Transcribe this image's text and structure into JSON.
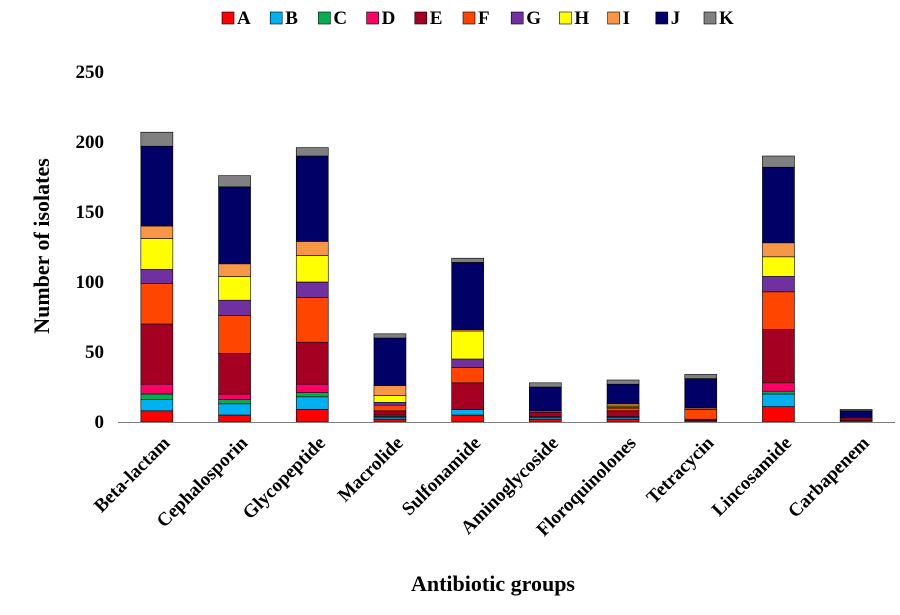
{
  "chart_data": {
    "type": "bar",
    "stacked": true,
    "title": "",
    "xlabel": "Antibiotic groups",
    "ylabel": "Number of isolates",
    "ylim": [
      0,
      250
    ],
    "yticks": [
      0,
      50,
      100,
      150,
      200,
      250
    ],
    "grid": false,
    "legend_position": "top",
    "categories": [
      "Beta-lactam",
      "Cephalosporin",
      "Glycopeptide",
      "Macrolide",
      "Sulfonamide",
      "Aminoglycoside",
      "Floroquinolones",
      "Tetracycin",
      "Lincosamide",
      "Carbapenem"
    ],
    "series": [
      {
        "name": "A",
        "color": "#ff0000",
        "values": [
          8,
          5,
          9,
          2,
          5,
          2,
          2,
          1,
          11,
          1
        ]
      },
      {
        "name": "B",
        "color": "#00b0f0",
        "values": [
          8,
          8,
          9,
          1,
          4,
          1,
          1,
          0,
          9,
          0
        ]
      },
      {
        "name": "C",
        "color": "#00b050",
        "values": [
          4,
          3,
          3,
          1,
          0,
          0,
          0,
          0,
          2,
          0
        ]
      },
      {
        "name": "D",
        "color": "#ff0066",
        "values": [
          7,
          4,
          6,
          1,
          0,
          1,
          1,
          0,
          6,
          0
        ]
      },
      {
        "name": "E",
        "color": "#a50021",
        "values": [
          43,
          29,
          30,
          3,
          19,
          3,
          4,
          1,
          38,
          2
        ]
      },
      {
        "name": "F",
        "color": "#ff4500",
        "values": [
          29,
          27,
          32,
          4,
          11,
          1,
          2,
          7,
          27,
          0
        ]
      },
      {
        "name": "G",
        "color": "#7030a0",
        "values": [
          10,
          11,
          11,
          2,
          6,
          0,
          1,
          0,
          11,
          0
        ]
      },
      {
        "name": "H",
        "color": "#ffff00",
        "values": [
          22,
          17,
          19,
          5,
          20,
          0,
          1,
          0,
          14,
          0
        ]
      },
      {
        "name": "I",
        "color": "#f79646",
        "values": [
          9,
          9,
          10,
          7,
          1,
          0,
          1,
          1,
          10,
          0
        ]
      },
      {
        "name": "J",
        "color": "#000066",
        "values": [
          57,
          55,
          61,
          34,
          48,
          17,
          14,
          21,
          54,
          5
        ]
      },
      {
        "name": "K",
        "color": "#808080",
        "values": [
          10,
          8,
          6,
          3,
          3,
          3,
          3,
          3,
          8,
          1
        ]
      }
    ]
  }
}
